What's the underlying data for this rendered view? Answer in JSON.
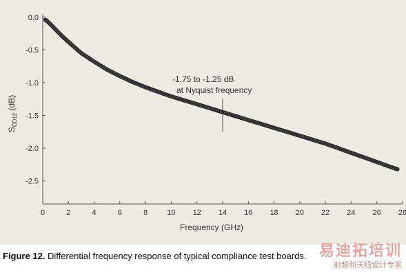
{
  "chart_data": {
    "type": "line",
    "title": "",
    "xlabel": "Frequency (GHz)",
    "ylabel_base": "S",
    "ylabel_sub": "CD12",
    "ylabel_unit": " (dB)",
    "xlim": [
      0,
      28
    ],
    "ylim": [
      -2.85,
      0.05
    ],
    "xticks": [
      0,
      2,
      4,
      6,
      8,
      10,
      12,
      14,
      16,
      18,
      20,
      22,
      24,
      26,
      28
    ],
    "xtick_labels": [
      "0",
      "2",
      "4",
      "6",
      "8",
      "10",
      "12",
      "14",
      "16",
      "18",
      "20",
      "22",
      "24",
      "26",
      "28"
    ],
    "yticks": [
      0.0,
      -0.5,
      -1.0,
      -1.5,
      -2.0,
      -2.5
    ],
    "ytick_labels": [
      "0.0",
      "-0.5",
      "-1.0",
      "-1.5",
      "-2.0",
      "-2.5"
    ],
    "grid": false,
    "series": [
      {
        "color": "#2a2a2a",
        "x": [
          0.2,
          0.5,
          1,
          1.5,
          2,
          3,
          4,
          5,
          6,
          7,
          8,
          9,
          10,
          11,
          12,
          13,
          14,
          15,
          16,
          17,
          18,
          19,
          20,
          21,
          22,
          23,
          24,
          25,
          26,
          27,
          27.6
        ],
        "y": [
          -0.04,
          -0.09,
          -0.19,
          -0.29,
          -0.38,
          -0.55,
          -0.68,
          -0.8,
          -0.9,
          -0.99,
          -1.07,
          -1.14,
          -1.21,
          -1.27,
          -1.33,
          -1.39,
          -1.45,
          -1.51,
          -1.57,
          -1.63,
          -1.69,
          -1.75,
          -1.81,
          -1.87,
          -1.93,
          -2.0,
          -2.07,
          -2.14,
          -2.21,
          -2.28,
          -2.32
        ]
      }
    ],
    "annotation": {
      "lines": [
        "-1.75 to -1.25 dB",
        "at Nyquist frequency"
      ],
      "marker_x": 14,
      "marker_y_range": [
        -1.25,
        -1.75
      ]
    }
  },
  "caption": {
    "lead": "Figure 12.",
    "text": " Differential frequency response of typical compliance test boards."
  },
  "watermark": {
    "top": "易迪拓培训",
    "bottom": "射频和天线设计专家"
  }
}
